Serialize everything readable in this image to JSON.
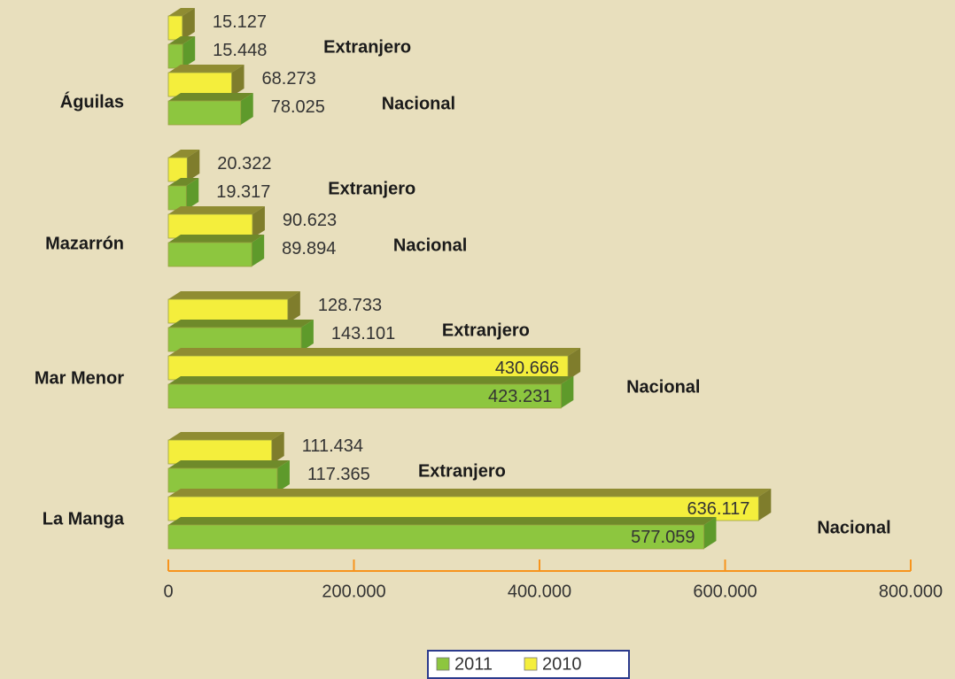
{
  "chart_data": {
    "type": "bar3d",
    "categories": [
      "Águilas",
      "Mazarrón",
      "Mar Menor",
      "La Manga"
    ],
    "subcategories": [
      "Extranjero",
      "Nacional"
    ],
    "series": [
      {
        "name": "2011",
        "color": "#8dc63f",
        "values": [
          [
            15448,
            78025
          ],
          [
            19317,
            89894
          ],
          [
            143101,
            423231
          ],
          [
            117365,
            577059
          ]
        ],
        "value_labels": [
          [
            "15.448",
            "78.025"
          ],
          [
            "19.317",
            "89.894"
          ],
          [
            "143.101",
            "423.231"
          ],
          [
            "117.365",
            "577.059"
          ]
        ]
      },
      {
        "name": "2010",
        "color": "#f4ee3c",
        "values": [
          [
            15127,
            68273
          ],
          [
            20322,
            90623
          ],
          [
            128733,
            430666
          ],
          [
            111434,
            636117
          ]
        ],
        "value_labels": [
          [
            "15.127",
            "68.273"
          ],
          [
            "20.322",
            "90.623"
          ],
          [
            "128.733",
            "430.666"
          ],
          [
            "111.434",
            "636.117"
          ]
        ]
      }
    ],
    "xlim": [
      0,
      800000
    ],
    "xticks": [
      0,
      {
        "value": 200000,
        "label": "200.000"
      },
      {
        "value": 400000,
        "label": "400.000"
      },
      {
        "value": 600000,
        "label": "600.000"
      },
      {
        "value": 800000,
        "label": "800.000"
      }
    ]
  }
}
